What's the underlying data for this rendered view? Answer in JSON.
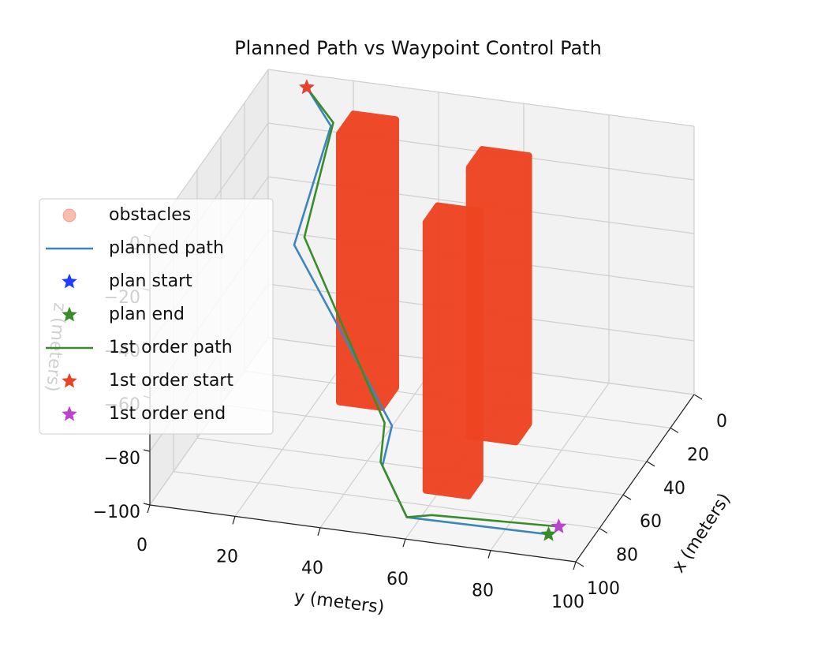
{
  "chart_data": {
    "type": "line3d",
    "title": "Planned Path vs Waypoint Control Path",
    "xlabel": "x (meters)",
    "ylabel": "y (meters)",
    "zlabel": "z (meters)",
    "xlim": [
      0,
      100
    ],
    "ylim": [
      0,
      100
    ],
    "zlim": [
      -100,
      0
    ],
    "xticks": [
      0,
      20,
      40,
      60,
      80,
      100
    ],
    "yticks": [
      0,
      20,
      40,
      60,
      80,
      100
    ],
    "zticks": [
      {
        "value": -100,
        "label": "−100"
      },
      {
        "value": -80,
        "label": "−80"
      },
      {
        "value": -60,
        "label": "−60"
      },
      {
        "value": -40,
        "label": "−40"
      },
      {
        "value": -20,
        "label": "−20"
      },
      0
    ],
    "grid": true,
    "legend": "left",
    "series": [
      {
        "name": "obstacles",
        "color": "#ee4422",
        "marker": "o",
        "boxes": [
          {
            "x": [
              18,
              30
            ],
            "y": [
              25,
              35
            ],
            "z": [
              -100,
              0
            ]
          },
          {
            "x": [
              28,
              39
            ],
            "y": [
              58,
              69
            ],
            "z": [
              -100,
              0
            ]
          },
          {
            "x": [
              62,
              72
            ],
            "y": [
              57,
              67
            ],
            "z": [
              -100,
              0
            ]
          }
        ]
      },
      {
        "name": "planned path",
        "color": "#3d85bd",
        "x": [
          7,
          19,
          50,
          61,
          69,
          88,
          87
        ],
        "y": [
          11,
          20,
          20,
          46,
          46,
          57,
          90
        ],
        "z": [
          0,
          -5,
          -30,
          -85,
          -95,
          -100,
          -100
        ]
      },
      {
        "name": "plan start",
        "color": "#1f3cff",
        "marker": "*",
        "x": [
          7
        ],
        "y": [
          11
        ],
        "z": [
          0
        ]
      },
      {
        "name": "plan end",
        "color": "#3a8c2a",
        "marker": "*",
        "x": [
          87
        ],
        "y": [
          90
        ],
        "z": [
          -100
        ]
      },
      {
        "name": "1st order path",
        "color": "#3a8c2a",
        "x": [
          7,
          17,
          45,
          60,
          67,
          88,
          85,
          82
        ],
        "y": [
          11,
          20,
          21,
          44,
          45,
          57,
          62,
          91
        ],
        "z": [
          0,
          -5,
          -30,
          -85,
          -95,
          -100,
          -100,
          -100
        ]
      },
      {
        "name": "1st order start",
        "color": "#e8432a",
        "marker": "*",
        "x": [
          7
        ],
        "y": [
          11
        ],
        "z": [
          0
        ]
      },
      {
        "name": "1st order end",
        "color": "#bb44cc",
        "marker": "*",
        "x": [
          82
        ],
        "y": [
          91
        ],
        "z": [
          -100
        ]
      }
    ]
  }
}
